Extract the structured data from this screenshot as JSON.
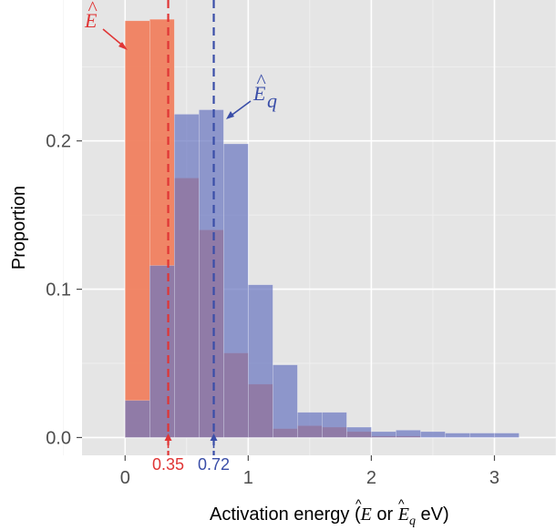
{
  "chart_data": {
    "type": "bar",
    "title": "",
    "xlabel": {
      "prefix": "Activation energy (",
      "E": "E",
      "or": " or ",
      "Eq": "E",
      "Eq_sub": "q",
      "suffix": " eV)"
    },
    "ylabel": "Proportion",
    "xlim": [
      -0.35,
      3.5
    ],
    "ylim": [
      -0.012,
      0.295
    ],
    "xticks": [
      0,
      1,
      2,
      3
    ],
    "xtick_labels": [
      "0",
      "1",
      "2",
      "3"
    ],
    "yticks": [
      0.0,
      0.1,
      0.2
    ],
    "ytick_labels": [
      "0.0",
      "0.1",
      "0.2"
    ],
    "grid": true,
    "legend": "none",
    "bin_width": 0.2,
    "series": [
      {
        "name": "E",
        "color": "#f07f5f",
        "bin_starts": [
          0,
          0.2,
          0.4,
          0.6,
          0.8,
          1.0,
          1.2,
          1.4,
          1.6,
          1.8,
          2.0,
          2.2
        ],
        "values": [
          0.281,
          0.282,
          0.175,
          0.14,
          0.057,
          0.036,
          0.006,
          0.008,
          0.007,
          0.004,
          0.001,
          0.001
        ]
      },
      {
        "name": "Eq",
        "color": "#6b77c0",
        "bin_starts": [
          0,
          0.2,
          0.4,
          0.6,
          0.8,
          1.0,
          1.2,
          1.4,
          1.6,
          1.8,
          2.0,
          2.2,
          2.4,
          2.6,
          2.8,
          3.0
        ],
        "values": [
          0.025,
          0.116,
          0.218,
          0.221,
          0.198,
          0.103,
          0.049,
          0.017,
          0.017,
          0.007,
          0.004,
          0.005,
          0.004,
          0.003,
          0.003,
          0.003
        ]
      }
    ],
    "reference_lines": [
      {
        "series": "E",
        "x": 0.35,
        "label": "0.35",
        "color": "#e03535"
      },
      {
        "series": "Eq",
        "x": 0.72,
        "label": "0.72",
        "color": "#3a4ea8"
      }
    ],
    "annotations": [
      {
        "series": "E",
        "text": "E",
        "color": "#e03535"
      },
      {
        "series": "Eq",
        "text": "E",
        "sub": "q",
        "color": "#3a4ea8"
      }
    ]
  }
}
